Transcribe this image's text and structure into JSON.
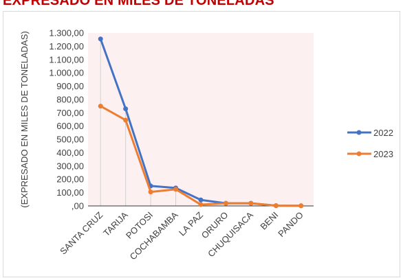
{
  "title": "EXPRESADO EN MILES DE TONELADAS",
  "chart_data": {
    "type": "line",
    "title": "EXPRESADO EN MILES DE TONELADAS",
    "xlabel": "",
    "ylabel": "(EXPRESADO EN MILES DE TONELADAS)",
    "categories": [
      "SANTA CRUZ",
      "TARIJA",
      "POTOSI",
      "COCHABAMBA",
      "LA PAZ",
      "ORURO",
      "CHUQUISACA",
      "BENI",
      "PANDO"
    ],
    "ylim": [
      0,
      1300
    ],
    "yticks": [
      ",00",
      "100,00",
      "200,00",
      "300,00",
      "400,00",
      "500,00",
      "600,00",
      "700,00",
      "800,00",
      "900,00",
      "1.000,00",
      "1.100,00",
      "1.200,00",
      "1.300,00"
    ],
    "series": [
      {
        "name": "2022",
        "color": "#4472c4",
        "values": [
          1255,
          730,
          150,
          135,
          45,
          20,
          20,
          2,
          1
        ]
      },
      {
        "name": "2023",
        "color": "#ed7d31",
        "values": [
          750,
          645,
          105,
          125,
          10,
          20,
          20,
          2,
          1
        ]
      }
    ],
    "plot_background": "#fdf0f0",
    "drop_lines": true,
    "legend_position": "right"
  }
}
